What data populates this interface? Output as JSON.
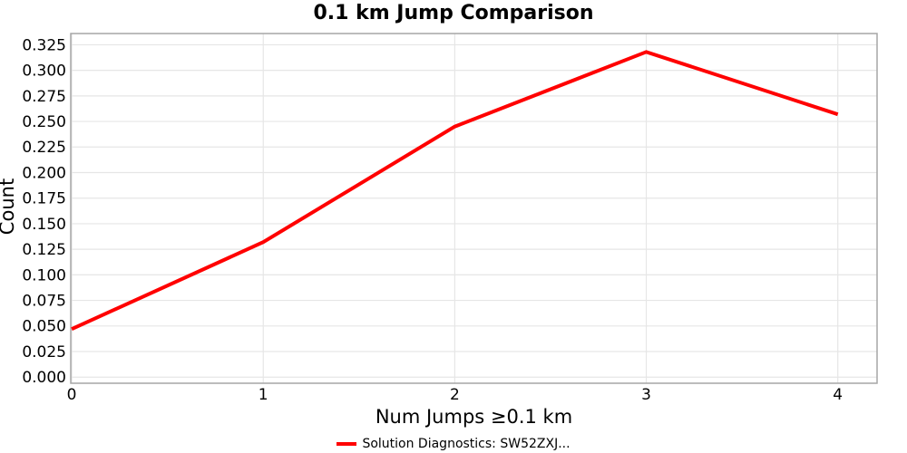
{
  "chart_data": {
    "type": "line",
    "title": "0.1 km Jump Comparison",
    "xlabel": "Num Jumps ≥0.1 km",
    "ylabel": "Count",
    "x": [
      0,
      1,
      2,
      3,
      4
    ],
    "series": [
      {
        "name": "Solution Diagnostics: SW52ZXJ...",
        "color": "#ff0000",
        "values": [
          0.047,
          0.132,
          0.245,
          0.318,
          0.257
        ]
      }
    ],
    "xlim": [
      -0.005,
      4.205
    ],
    "ylim": [
      -0.006,
      0.336
    ],
    "xticks": [
      {
        "value": 0,
        "label": "0"
      },
      {
        "value": 1,
        "label": "1"
      },
      {
        "value": 2,
        "label": "2"
      },
      {
        "value": 3,
        "label": "3"
      },
      {
        "value": 4,
        "label": "4"
      }
    ],
    "yticks": [
      {
        "value": 0.0,
        "label": "0.000"
      },
      {
        "value": 0.025,
        "label": "0.025"
      },
      {
        "value": 0.05,
        "label": "0.050"
      },
      {
        "value": 0.075,
        "label": "0.075"
      },
      {
        "value": 0.1,
        "label": "0.100"
      },
      {
        "value": 0.125,
        "label": "0.125"
      },
      {
        "value": 0.15,
        "label": "0.150"
      },
      {
        "value": 0.175,
        "label": "0.175"
      },
      {
        "value": 0.2,
        "label": "0.200"
      },
      {
        "value": 0.225,
        "label": "0.225"
      },
      {
        "value": 0.25,
        "label": "0.250"
      },
      {
        "value": 0.275,
        "label": "0.275"
      },
      {
        "value": 0.3,
        "label": "0.300"
      },
      {
        "value": 0.325,
        "label": "0.325"
      }
    ],
    "grid": true,
    "legend_position": "bottom-center",
    "colors": {
      "grid": "#e6e6e6",
      "border": "#a6a6a6",
      "line": "#ff0000",
      "text": "#000000"
    }
  }
}
